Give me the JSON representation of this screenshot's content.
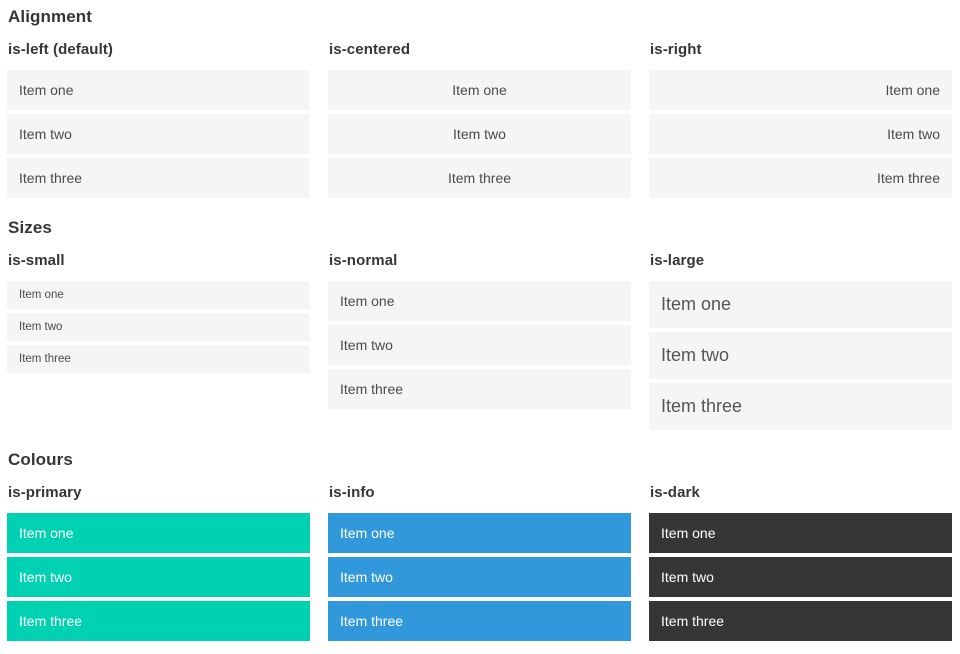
{
  "item_labels": [
    "Item one",
    "Item two",
    "Item three"
  ],
  "sections": [
    {
      "title": "Alignment",
      "columns": [
        {
          "heading": "is-left (default)",
          "variant": "left",
          "items": [
            "Item one",
            "Item two",
            "Item three"
          ]
        },
        {
          "heading": "is-centered",
          "variant": "centered",
          "items": [
            "Item one",
            "Item two",
            "Item three"
          ]
        },
        {
          "heading": "is-right",
          "variant": "right",
          "items": [
            "Item one",
            "Item two",
            "Item three"
          ]
        }
      ]
    },
    {
      "title": "Sizes",
      "columns": [
        {
          "heading": "is-small",
          "variant": "small",
          "items": [
            "Item one",
            "Item two",
            "Item three"
          ]
        },
        {
          "heading": "is-normal",
          "variant": "normal",
          "items": [
            "Item one",
            "Item two",
            "Item three"
          ]
        },
        {
          "heading": "is-large",
          "variant": "large",
          "items": [
            "Item one",
            "Item two",
            "Item three"
          ]
        }
      ]
    },
    {
      "title": "Colours",
      "columns": [
        {
          "heading": "is-primary",
          "variant": "primary",
          "items": [
            "Item one",
            "Item two",
            "Item three"
          ],
          "item_bg": "#00d1b2",
          "item_text": "#ffffff"
        },
        {
          "heading": "is-info",
          "variant": "info",
          "items": [
            "Item one",
            "Item two",
            "Item three"
          ],
          "item_bg": "#3298dc",
          "item_text": "#ffffff"
        },
        {
          "heading": "is-dark",
          "variant": "dark",
          "items": [
            "Item one",
            "Item two",
            "Item three"
          ],
          "item_bg": "#363636",
          "item_text": "#ffffff"
        }
      ]
    }
  ],
  "colors": {
    "page_background": "#ffffff",
    "item_background": "#f5f5f5",
    "item_text": "#4a4a4a",
    "heading_text": "#363636",
    "primary": "#00d1b2",
    "info": "#3298dc",
    "dark": "#363636",
    "light_text": "#ffffff"
  }
}
